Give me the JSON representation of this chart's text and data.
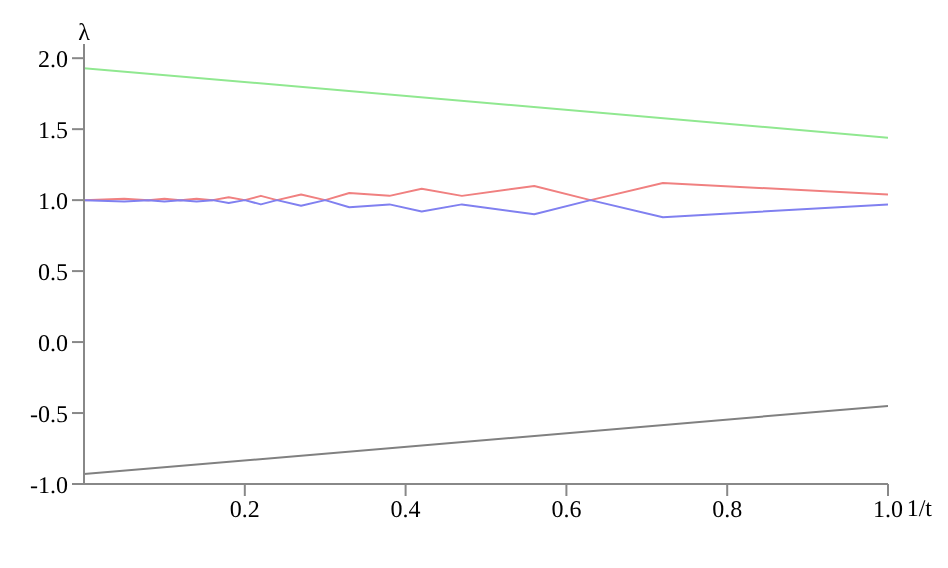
{
  "chart_data": {
    "type": "line",
    "xlabel": "1/t",
    "ylabel": "λ",
    "xlim": [
      0,
      1.0
    ],
    "ylim": [
      -1.0,
      2.1
    ],
    "xticks": [
      {
        "value": 0.2,
        "label": "0.2"
      },
      {
        "value": 0.4,
        "label": "0.4"
      },
      {
        "value": 0.6,
        "label": "0.6"
      },
      {
        "value": 0.8,
        "label": "0.8"
      },
      {
        "value": 1.0,
        "label": "1.0"
      }
    ],
    "yticks": [
      {
        "value": -1,
        "label": "-1.0"
      },
      {
        "value": -0.5,
        "label": "-0.5"
      },
      {
        "value": 0,
        "label": "0.0"
      },
      {
        "value": 0.5,
        "label": "0.5"
      },
      {
        "value": 1,
        "label": "1.0"
      },
      {
        "value": 1.5,
        "label": "1.5"
      },
      {
        "value": 2,
        "label": "2.0"
      }
    ],
    "grid": false,
    "marker": "none",
    "line_style": "solid",
    "series": [
      {
        "color": "#90e890",
        "x": [
          0,
          1.0
        ],
        "values": [
          1.93,
          1.44
        ]
      },
      {
        "color": "#808080",
        "x": [
          0,
          1.0
        ],
        "values": [
          -0.93,
          -0.45
        ]
      },
      {
        "color": "#f08080",
        "x": [
          0,
          0.05,
          0.08,
          0.1,
          0.12,
          0.14,
          0.16,
          0.18,
          0.2,
          0.22,
          0.24,
          0.27,
          0.3,
          0.33,
          0.38,
          0.42,
          0.47,
          0.56,
          0.63,
          0.72,
          1.0
        ],
        "values": [
          1.0,
          1.01,
          1.0,
          1.01,
          1.0,
          1.01,
          1.0,
          1.02,
          1.0,
          1.03,
          1.0,
          1.04,
          1.0,
          1.05,
          1.03,
          1.08,
          1.03,
          1.1,
          1.0,
          1.12,
          1.04
        ]
      },
      {
        "color": "#8080f0",
        "x": [
          0,
          0.05,
          0.08,
          0.1,
          0.12,
          0.14,
          0.16,
          0.18,
          0.2,
          0.22,
          0.24,
          0.27,
          0.3,
          0.33,
          0.38,
          0.42,
          0.47,
          0.56,
          0.63,
          0.72,
          1.0
        ],
        "values": [
          1.0,
          0.99,
          1.0,
          0.99,
          1.0,
          0.99,
          1.0,
          0.98,
          1.0,
          0.97,
          1.0,
          0.96,
          1.0,
          0.95,
          0.97,
          0.92,
          0.97,
          0.9,
          1.0,
          0.88,
          0.97
        ]
      }
    ]
  }
}
